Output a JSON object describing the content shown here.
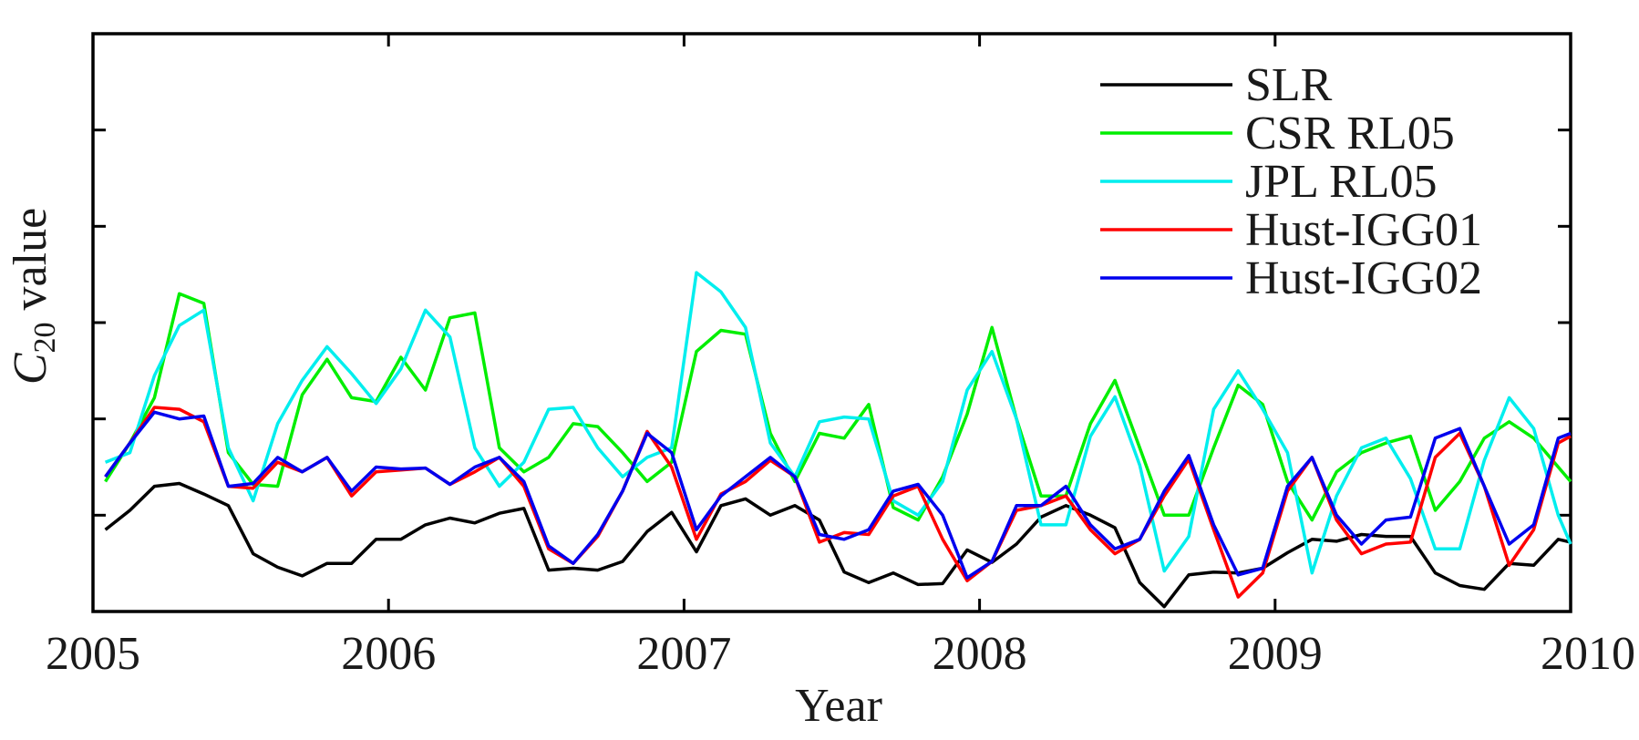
{
  "chart_data": {
    "type": "line",
    "xlabel": "Year",
    "ylabel": "C",
    "ylabel_subscript": "20",
    "ylabel_suffix": " value",
    "xlim": [
      2005,
      2010
    ],
    "ylim": [
      0,
      6
    ],
    "x_ticks": [
      2005,
      2006,
      2007,
      2008,
      2009,
      2010
    ],
    "y_ticks": [
      1,
      2,
      3,
      4,
      5
    ],
    "y_tick_labels_shown": false,
    "legend_position": "top-right",
    "grid": false,
    "x": [
      2005.042,
      2005.125,
      2005.208,
      2005.292,
      2005.375,
      2005.458,
      2005.542,
      2005.625,
      2005.708,
      2005.792,
      2005.875,
      2005.958,
      2006.042,
      2006.125,
      2006.208,
      2006.292,
      2006.375,
      2006.458,
      2006.542,
      2006.625,
      2006.708,
      2006.792,
      2006.875,
      2006.958,
      2007.042,
      2007.125,
      2007.208,
      2007.292,
      2007.375,
      2007.458,
      2007.542,
      2007.625,
      2007.708,
      2007.792,
      2007.875,
      2007.958,
      2008.042,
      2008.125,
      2008.208,
      2008.292,
      2008.375,
      2008.458,
      2008.542,
      2008.625,
      2008.708,
      2008.792,
      2008.875,
      2008.958,
      2009.042,
      2009.125,
      2009.208,
      2009.292,
      2009.375,
      2009.458,
      2009.542,
      2009.625,
      2009.708,
      2009.792,
      2009.875,
      2009.958,
      2010.0
    ],
    "series": [
      {
        "name": "SLR",
        "color": "#000000",
        "values": [
          0.85,
          1.05,
          1.3,
          1.33,
          1.22,
          1.1,
          0.6,
          0.46,
          0.37,
          0.5,
          0.5,
          0.75,
          0.75,
          0.9,
          0.97,
          0.92,
          1.02,
          1.07,
          0.43,
          0.45,
          0.43,
          0.52,
          0.83,
          1.03,
          0.62,
          1.1,
          1.17,
          1.0,
          1.1,
          0.95,
          0.41,
          0.3,
          0.4,
          0.28,
          0.29,
          0.64,
          0.51,
          0.7,
          0.98,
          1.1,
          1.0,
          0.87,
          0.3,
          0.05,
          0.38,
          0.41,
          0.4,
          0.45,
          0.61,
          0.75,
          0.73,
          0.8,
          0.78,
          0.78,
          0.4,
          0.27,
          0.23,
          0.5,
          0.48,
          0.75,
          0.72
        ]
      },
      {
        "name": "CSR RL05",
        "color": "#00ee00",
        "values": [
          1.35,
          1.75,
          2.22,
          3.3,
          3.2,
          1.65,
          1.32,
          1.3,
          2.25,
          2.62,
          2.22,
          2.18,
          2.64,
          2.3,
          3.05,
          3.1,
          1.7,
          1.45,
          1.6,
          1.95,
          1.92,
          1.65,
          1.35,
          1.55,
          2.7,
          2.92,
          2.88,
          1.85,
          1.35,
          1.85,
          1.8,
          2.15,
          1.08,
          0.95,
          1.4,
          2.05,
          2.95,
          2.0,
          1.2,
          1.2,
          1.95,
          2.4,
          1.7,
          1.0,
          1.0,
          1.7,
          2.35,
          2.15,
          1.35,
          0.95,
          1.45,
          1.65,
          1.75,
          1.82,
          1.05,
          1.35,
          1.8,
          1.97,
          1.8,
          1.5,
          1.35
        ]
      },
      {
        "name": "JPL RL05",
        "color": "#00eeee",
        "values": [
          1.55,
          1.65,
          2.45,
          2.97,
          3.13,
          1.7,
          1.15,
          1.95,
          2.4,
          2.75,
          2.47,
          2.16,
          2.52,
          3.13,
          2.85,
          1.7,
          1.3,
          1.55,
          2.1,
          2.12,
          1.7,
          1.4,
          1.6,
          1.7,
          3.52,
          3.32,
          2.95,
          1.75,
          1.4,
          1.97,
          2.02,
          2.0,
          1.15,
          1.0,
          1.35,
          2.3,
          2.7,
          2.0,
          0.9,
          0.9,
          1.82,
          2.23,
          1.52,
          0.42,
          0.78,
          2.1,
          2.5,
          2.1,
          1.65,
          0.4,
          1.2,
          1.7,
          1.8,
          1.38,
          0.65,
          0.65,
          1.57,
          2.22,
          1.9,
          1.0,
          0.7
        ]
      },
      {
        "name": "Hust-IGG01",
        "color": "#ff0000",
        "values": [
          1.4,
          1.75,
          2.12,
          2.1,
          1.97,
          1.3,
          1.28,
          1.55,
          1.45,
          1.6,
          1.2,
          1.45,
          1.47,
          1.49,
          1.32,
          1.45,
          1.6,
          1.3,
          0.65,
          0.5,
          0.78,
          1.25,
          1.87,
          1.5,
          0.75,
          1.22,
          1.35,
          1.57,
          1.4,
          0.72,
          0.82,
          0.8,
          1.2,
          1.3,
          0.75,
          0.32,
          0.52,
          1.05,
          1.1,
          1.2,
          0.85,
          0.6,
          0.75,
          1.2,
          1.58,
          0.85,
          0.15,
          0.4,
          1.25,
          1.6,
          0.95,
          0.6,
          0.7,
          0.72,
          1.6,
          1.85,
          1.3,
          0.48,
          0.85,
          1.75,
          1.82
        ]
      },
      {
        "name": "Hust-IGG02",
        "color": "#0000ee",
        "values": [
          1.4,
          1.75,
          2.07,
          2.0,
          2.03,
          1.3,
          1.33,
          1.6,
          1.45,
          1.6,
          1.25,
          1.5,
          1.48,
          1.49,
          1.32,
          1.5,
          1.6,
          1.35,
          0.68,
          0.5,
          0.8,
          1.25,
          1.85,
          1.65,
          0.85,
          1.2,
          1.4,
          1.6,
          1.4,
          0.8,
          0.75,
          0.85,
          1.25,
          1.32,
          1.0,
          0.35,
          0.52,
          1.1,
          1.1,
          1.3,
          0.9,
          0.65,
          0.75,
          1.25,
          1.62,
          0.9,
          0.38,
          0.45,
          1.3,
          1.6,
          1.0,
          0.7,
          0.95,
          0.98,
          1.8,
          1.9,
          1.3,
          0.7,
          0.9,
          1.8,
          1.85
        ]
      }
    ]
  }
}
